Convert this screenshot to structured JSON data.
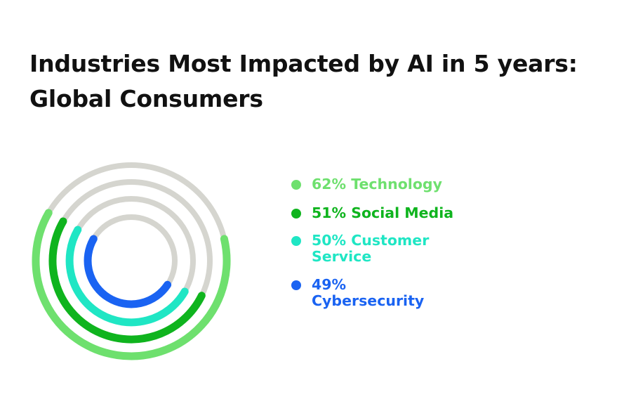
{
  "title_lines": [
    "Industries Most Impacted by AI in 5 years:",
    "Global Consumers"
  ],
  "chart_data": {
    "type": "radial-bar",
    "title": "Industries Most Impacted by AI in 5 years: Global Consumers",
    "unit": "%",
    "max": 100,
    "track_color": "#d5d5cf",
    "series": [
      {
        "label": "62% Technology",
        "category": "Technology",
        "value": 62,
        "color": "#6ee06e"
      },
      {
        "label": "51% Social Media",
        "category": "Social Media",
        "value": 51,
        "color": "#0fb41e"
      },
      {
        "label": "50% Customer Service",
        "category": "Customer Service",
        "value": 50,
        "color": "#1fe6c4"
      },
      {
        "label": "49% Cybersecurity",
        "category": "Cybersecurity",
        "value": 49,
        "color": "#1a63f2"
      }
    ]
  }
}
